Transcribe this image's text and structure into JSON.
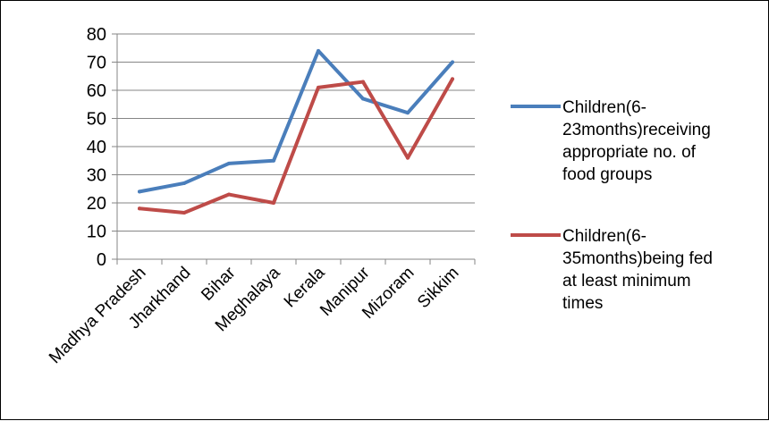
{
  "chart_data": {
    "type": "line",
    "title": "",
    "xlabel": "",
    "ylabel": "",
    "categories": [
      "Madhya Pradesh",
      "Jharkhand",
      "Bihar",
      "Meghalaya",
      "Kerala",
      "Manipur",
      "Mizoram",
      "Sikkim"
    ],
    "ylim": [
      0,
      80
    ],
    "yticks": [
      0,
      10,
      20,
      30,
      40,
      50,
      60,
      70,
      80
    ],
    "grid": true,
    "legend_position": "right",
    "series": [
      {
        "name": "Children(6-23months)receiving appropriate no. of food groups",
        "legend_lines": [
          "Children(6-",
          "23months)receiving",
          "appropriate no. of",
          "food groups"
        ],
        "color": "#4a7ebb",
        "values": [
          24,
          27,
          34,
          35,
          74,
          57,
          52,
          70
        ]
      },
      {
        "name": "Children(6-35months)being fed at least minimum times",
        "legend_lines": [
          "Children(6-",
          "35months)being fed",
          "at least minimum",
          "times"
        ],
        "color": "#be4b48",
        "values": [
          18,
          16.5,
          23,
          20,
          61,
          63,
          36,
          64
        ]
      }
    ]
  }
}
